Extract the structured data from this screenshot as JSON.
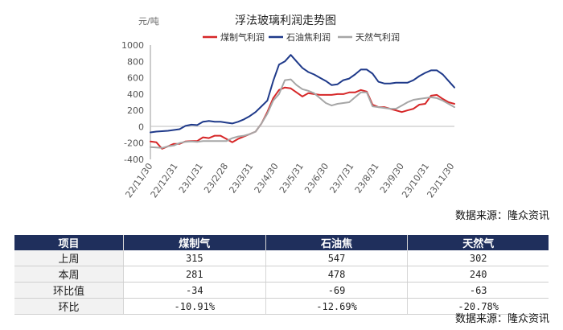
{
  "chart_data": {
    "type": "line",
    "title": "浮法玻璃利润走势图",
    "unit": "元/吨",
    "ylim": [
      -400,
      1000
    ],
    "yticks": [
      -400,
      -200,
      0,
      200,
      400,
      600,
      800,
      1000
    ],
    "xticks": [
      "22/11/30",
      "22/12/31",
      "23/1/31",
      "23/2/28",
      "23/3/31",
      "23/4/30",
      "23/5/31",
      "23/6/30",
      "23/7/31",
      "23/8/31",
      "23/9/30",
      "23/10/31",
      "23/11/30"
    ],
    "x": [
      "22/11/30",
      "22/12/07",
      "22/12/14",
      "22/12/21",
      "22/12/28",
      "23/01/04",
      "23/01/11",
      "23/01/18",
      "23/01/25",
      "23/02/01",
      "23/02/08",
      "23/02/15",
      "23/02/22",
      "23/03/01",
      "23/03/08",
      "23/03/15",
      "23/03/22",
      "23/03/29",
      "23/04/05",
      "23/04/12",
      "23/04/19",
      "23/04/26",
      "23/05/03",
      "23/05/10",
      "23/05/17",
      "23/05/24",
      "23/05/31",
      "23/06/07",
      "23/06/14",
      "23/06/21",
      "23/06/28",
      "23/07/05",
      "23/07/12",
      "23/07/19",
      "23/07/26",
      "23/08/02",
      "23/08/09",
      "23/08/16",
      "23/08/23",
      "23/08/30",
      "23/09/06",
      "23/09/13",
      "23/09/20",
      "23/09/27",
      "23/10/04",
      "23/10/11",
      "23/10/18",
      "23/10/25",
      "23/11/01",
      "23/11/08",
      "23/11/15",
      "23/11/22",
      "23/11/29"
    ],
    "legend_position": "top",
    "series": [
      {
        "name": "煤制气利润",
        "color": "#d62728",
        "values": [
          -180,
          -190,
          -270,
          -240,
          -210,
          -210,
          -180,
          -175,
          -175,
          -130,
          -140,
          -110,
          -110,
          -150,
          -190,
          -150,
          -120,
          -90,
          -60,
          40,
          180,
          350,
          450,
          480,
          470,
          420,
          370,
          410,
          400,
          390,
          390,
          390,
          400,
          400,
          420,
          420,
          450,
          430,
          270,
          240,
          240,
          220,
          200,
          180,
          200,
          220,
          270,
          280,
          380,
          390,
          340,
          300,
          280
        ]
      },
      {
        "name": "石油焦利润",
        "color": "#1f3a8a",
        "values": [
          -70,
          -60,
          -55,
          -50,
          -40,
          -30,
          10,
          25,
          20,
          60,
          70,
          60,
          60,
          50,
          40,
          60,
          90,
          130,
          180,
          250,
          320,
          560,
          760,
          800,
          880,
          800,
          720,
          670,
          640,
          600,
          560,
          510,
          520,
          570,
          590,
          640,
          700,
          700,
          650,
          550,
          530,
          530,
          540,
          540,
          540,
          570,
          620,
          660,
          690,
          690,
          640,
          560,
          480
        ]
      },
      {
        "name": "天然气利润",
        "color": "#a6a6a6",
        "values": [
          -250,
          -255,
          -260,
          -240,
          -230,
          -200,
          -185,
          -180,
          -185,
          -175,
          -175,
          -175,
          -175,
          -175,
          -140,
          -120,
          -110,
          -90,
          -60,
          40,
          160,
          320,
          400,
          570,
          580,
          510,
          460,
          440,
          410,
          350,
          290,
          260,
          280,
          290,
          300,
          360,
          420,
          420,
          250,
          240,
          230,
          220,
          220,
          260,
          300,
          330,
          340,
          350,
          360,
          350,
          320,
          280,
          240
        ]
      }
    ]
  },
  "source_label": "数据来源：隆众资讯",
  "table": {
    "headers": [
      "项目",
      "煤制气",
      "石油焦",
      "天然气"
    ],
    "rows": [
      {
        "label": "上周",
        "values": [
          "315",
          "547",
          "302"
        ]
      },
      {
        "label": "本周",
        "values": [
          "281",
          "478",
          "240"
        ]
      },
      {
        "label": "环比值",
        "values": [
          "-34",
          "-69",
          "-63"
        ]
      },
      {
        "label": "环比",
        "values": [
          "-10.91%",
          "-12.69%",
          "-20.78%"
        ]
      }
    ]
  }
}
